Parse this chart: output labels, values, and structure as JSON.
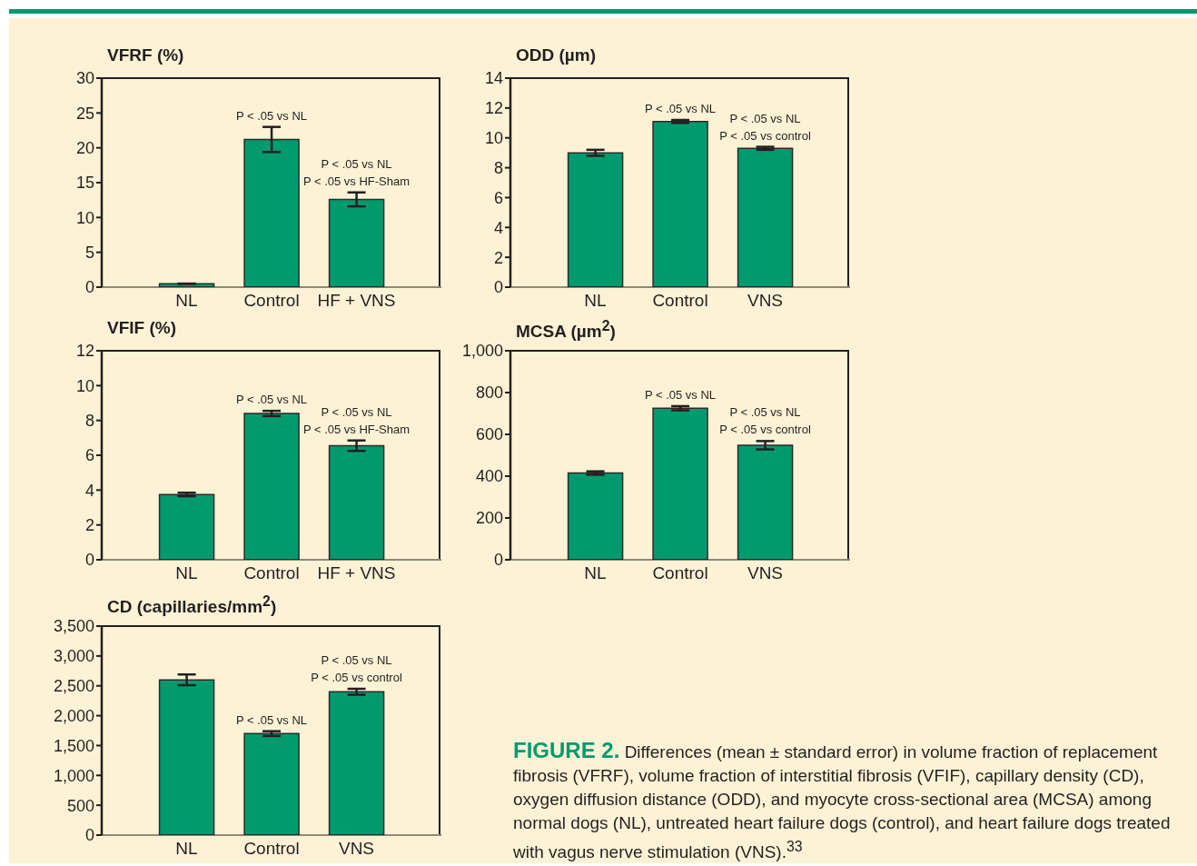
{
  "chart_data": [
    {
      "type": "bar",
      "title": "VFRF (%)",
      "categories": [
        "NL",
        "Control",
        "HF + VNS"
      ],
      "values": [
        0.5,
        21.2,
        12.6
      ],
      "errors": [
        null,
        1.8,
        1.0
      ],
      "color": "#009a6e",
      "ylim": [
        0,
        30
      ],
      "yticks": [
        0,
        5,
        10,
        15,
        20,
        25,
        30
      ],
      "grid": false,
      "annotations": [
        {
          "text": "P < .05 vs NL",
          "x": "Control",
          "y": 21.2
        },
        {
          "text": "P < .05 vs NL",
          "x": "HF + VNS",
          "y": 12.6
        },
        {
          "text": "P < .05 vs HF-Sham",
          "x": "HF + VNS",
          "y": 12.6
        }
      ]
    },
    {
      "type": "bar",
      "title": "ODD (µm)",
      "categories": [
        "NL",
        "Control",
        "VNS"
      ],
      "values": [
        9.0,
        11.1,
        9.3
      ],
      "errors": [
        0.2,
        0.1,
        0.1
      ],
      "color": "#009a6e",
      "ylim": [
        0,
        14
      ],
      "yticks": [
        0,
        2,
        4,
        6,
        8,
        10,
        12,
        14
      ],
      "grid": false,
      "annotations": [
        {
          "text": "P < .05 vs NL",
          "x": "Control",
          "y": 11.1
        },
        {
          "text": "P < .05 vs NL",
          "x": "VNS",
          "y": 9.3
        },
        {
          "text": "P < .05 vs control",
          "x": "VNS",
          "y": 9.3
        }
      ]
    },
    {
      "type": "bar",
      "title": "VFIF (%)",
      "categories": [
        "NL",
        "Control",
        "HF + VNS"
      ],
      "values": [
        3.75,
        8.4,
        6.55
      ],
      "errors": [
        0.1,
        0.15,
        0.3
      ],
      "color": "#009a6e",
      "ylim": [
        0,
        12
      ],
      "yticks": [
        0,
        2,
        4,
        6,
        8,
        10,
        12
      ],
      "grid": false,
      "annotations": [
        {
          "text": "P < .05 vs NL",
          "x": "Control",
          "y": 8.4
        },
        {
          "text": "P < .05 vs NL",
          "x": "HF + VNS",
          "y": 6.55
        },
        {
          "text": "P < .05 vs HF-Sham",
          "x": "HF + VNS",
          "y": 6.55
        }
      ]
    },
    {
      "type": "bar",
      "title": "MCSA (µm$^{2}$)",
      "categories": [
        "NL",
        "Control",
        "VNS"
      ],
      "values": [
        415,
        725,
        548
      ],
      "errors": [
        8,
        10,
        20
      ],
      "color": "#009a6e",
      "ylim": [
        0,
        1000
      ],
      "yticks": [
        0,
        200,
        400,
        600,
        800,
        {
          "value": 1000,
          "label": "1,000"
        }
      ],
      "grid": false,
      "annotations": [
        {
          "text": "P < .05 vs NL",
          "x": "Control",
          "y": 725
        },
        {
          "text": "P < .05 vs NL",
          "x": "VNS",
          "y": 548
        },
        {
          "text": "P < .05 vs control",
          "x": "VNS",
          "y": 548
        }
      ]
    },
    {
      "type": "bar",
      "title": "CD (capillaries/mm$^{2}$)",
      "categories": [
        "NL",
        "Control",
        "VNS"
      ],
      "values": [
        2600,
        1700,
        2400
      ],
      "errors": [
        90,
        40,
        50
      ],
      "color": "#009a6e",
      "ylim": [
        0,
        3500
      ],
      "yticks": [
        0,
        500,
        {
          "value": 1000,
          "label": "1,000"
        },
        {
          "value": 1500,
          "label": "1,500"
        },
        {
          "value": 2000,
          "label": "2,000"
        },
        {
          "value": 2500,
          "label": "2,500"
        },
        {
          "value": 3000,
          "label": "3,000"
        },
        {
          "value": 3500,
          "label": "3,500"
        }
      ],
      "grid": false,
      "annotations": [
        {
          "text": "P < .05 vs NL",
          "x": "Control",
          "y": 1700
        },
        {
          "text": "P < .05 vs NL",
          "x": "VNS",
          "y": 2400
        },
        {
          "text": "P < .05 vs control",
          "x": "VNS",
          "y": 2400
        }
      ]
    },
    {
      "type": "other",
      "title": "FIGURE 2.",
      "annotations": [
        "Differences (mean ± standard error) in volume fraction of replacement fibrosis (VFRF), volume fraction of interstitial fibrosis (VFIF), capillary density (CD), oxygen diffusion distance (ODD), and myocyte cross-sectional area (MCSA) among normal dogs (NL), untreated heart failure dogs (control), and heart failure dogs treated with vagus nerve stimulation (VNS).$^{33}$"
      ]
    }
  ]
}
